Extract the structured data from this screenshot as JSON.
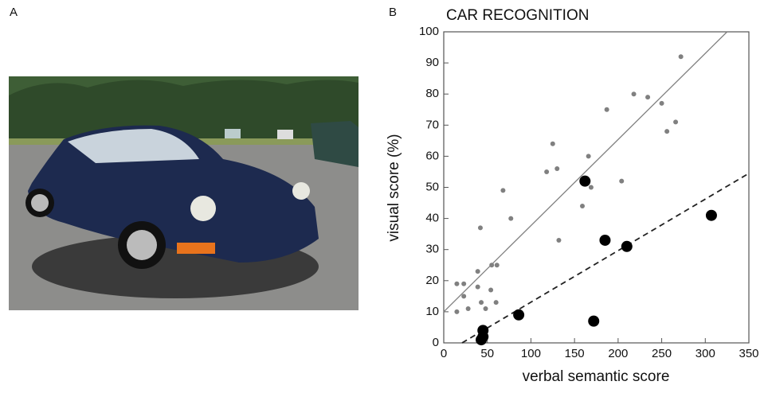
{
  "panels": {
    "a_label": "A",
    "b_label": "B"
  },
  "chart_data": {
    "type": "scatter",
    "title": "CAR RECOGNITION",
    "x_label": "verbal semantic score",
    "y_label": "visual score (%)",
    "xlim": [
      0,
      350
    ],
    "ylim": [
      0,
      100
    ],
    "xticks": [
      0,
      50,
      100,
      150,
      200,
      250,
      300,
      350
    ],
    "yticks": [
      0,
      10,
      20,
      30,
      40,
      50,
      60,
      70,
      80,
      90,
      100
    ],
    "series": [
      {
        "color": "#808080",
        "size": 3,
        "x": [
          15,
          23,
          23,
          28,
          15,
          39,
          42,
          39,
          43,
          48,
          54,
          55,
          61,
          60,
          68,
          77,
          118,
          125,
          130,
          132,
          159,
          166,
          169,
          187,
          204,
          218,
          234,
          250,
          256,
          266,
          272
        ],
        "values": [
          19,
          19,
          15,
          11,
          10,
          23,
          37,
          18,
          13,
          11,
          17,
          25,
          25,
          13,
          49,
          40,
          55,
          64,
          56,
          33,
          44,
          60,
          50,
          75,
          52,
          80,
          79,
          77,
          68,
          71,
          92
        ]
      },
      {
        "color": "#000000",
        "size": 7,
        "x": [
          162,
          307,
          185,
          210,
          86,
          172,
          45,
          45,
          43
        ],
        "values": [
          52,
          41,
          33,
          31,
          9,
          7,
          4,
          2,
          1
        ]
      }
    ],
    "lines": [
      {
        "color": "#808080",
        "dashed": false,
        "x": [
          0,
          325
        ],
        "values": [
          10,
          100
        ]
      },
      {
        "color": "#222222",
        "dashed": true,
        "x": [
          21,
          350
        ],
        "values": [
          0,
          54.5
        ]
      }
    ]
  }
}
